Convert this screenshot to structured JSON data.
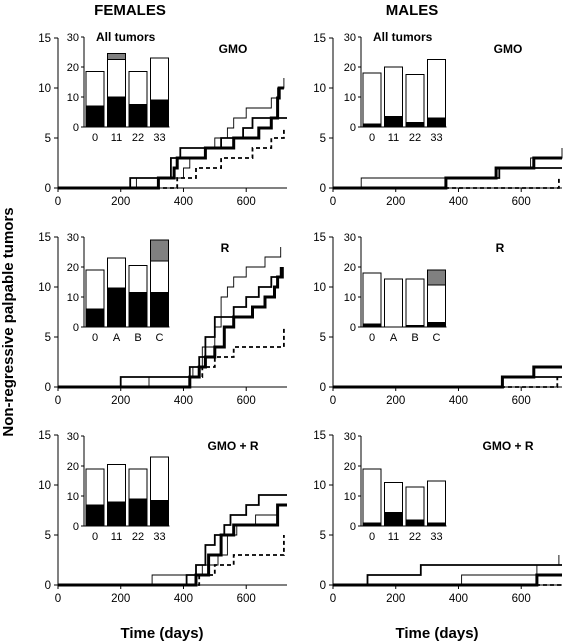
{
  "columns": [
    "FEMALES",
    "MALES"
  ],
  "ylabel": "Non-regressive palpable tumors",
  "xlabel": "Time (days)",
  "chart_data": [
    {
      "type": "line",
      "sex": "females",
      "group": "GMO",
      "label": "GMO",
      "inset_title": "All tumors",
      "xlim": [
        0,
        730
      ],
      "ylim": [
        0,
        15
      ],
      "xticks": [
        0,
        200,
        400,
        600
      ],
      "yticks": [
        0,
        5,
        10,
        15
      ],
      "series": [
        {
          "style": "thin",
          "steps": [
            [
              0,
              0
            ],
            [
              250,
              1
            ],
            [
              400,
              2
            ],
            [
              420,
              3
            ],
            [
              470,
              4
            ],
            [
              500,
              5
            ],
            [
              540,
              6
            ],
            [
              560,
              7
            ],
            [
              600,
              8
            ],
            [
              680,
              9
            ],
            [
              700,
              10
            ],
            [
              720,
              11
            ]
          ]
        },
        {
          "style": "medium",
          "steps": [
            [
              0,
              0
            ],
            [
              230,
              1
            ],
            [
              360,
              3
            ],
            [
              390,
              4
            ],
            [
              520,
              5
            ],
            [
              590,
              6
            ],
            [
              620,
              7
            ],
            [
              730,
              7
            ]
          ]
        },
        {
          "style": "thick",
          "steps": [
            [
              0,
              0
            ],
            [
              320,
              1
            ],
            [
              370,
              2
            ],
            [
              380,
              3
            ],
            [
              470,
              4
            ],
            [
              560,
              5
            ],
            [
              640,
              6
            ],
            [
              680,
              7
            ],
            [
              700,
              9
            ],
            [
              705,
              10
            ],
            [
              720,
              10
            ]
          ]
        },
        {
          "style": "dashed",
          "steps": [
            [
              0,
              0
            ],
            [
              380,
              1
            ],
            [
              440,
              2
            ],
            [
              520,
              3
            ],
            [
              620,
              4
            ],
            [
              680,
              5
            ],
            [
              720,
              6
            ]
          ]
        }
      ],
      "inset": {
        "categories": [
          "0",
          "11",
          "22",
          "33"
        ],
        "ylim": [
          0,
          30
        ],
        "yticks": [
          0,
          10,
          20,
          30
        ],
        "stacks": [
          {
            "black": 7,
            "white": 11.5,
            "grey": 0
          },
          {
            "black": 10,
            "white": 12.5,
            "grey": 2
          },
          {
            "black": 7.5,
            "white": 11,
            "grey": 0
          },
          {
            "black": 9,
            "white": 14,
            "grey": 0
          }
        ]
      }
    },
    {
      "type": "line",
      "sex": "males",
      "group": "GMO",
      "label": "GMO",
      "inset_title": "All tumors",
      "xlim": [
        0,
        730
      ],
      "ylim": [
        0,
        15
      ],
      "xticks": [
        0,
        200,
        400,
        600
      ],
      "yticks": [
        0,
        5,
        10,
        15
      ],
      "series": [
        {
          "style": "thin",
          "steps": [
            [
              0,
              0
            ],
            [
              90,
              1
            ],
            [
              530,
              2
            ],
            [
              630,
              3
            ],
            [
              730,
              4
            ]
          ]
        },
        {
          "style": "medium",
          "steps": [
            [
              0,
              0
            ],
            [
              360,
              1
            ],
            [
              530,
              2
            ],
            [
              730,
              2
            ]
          ]
        },
        {
          "style": "thick",
          "steps": [
            [
              0,
              0
            ],
            [
              360,
              1
            ],
            [
              520,
              2
            ],
            [
              640,
              3
            ],
            [
              730,
              3
            ]
          ]
        },
        {
          "style": "dashed",
          "steps": [
            [
              0,
              0
            ],
            [
              720,
              1
            ]
          ]
        }
      ],
      "inset": {
        "categories": [
          "0",
          "11",
          "22",
          "33"
        ],
        "ylim": [
          0,
          30
        ],
        "yticks": [
          0,
          10,
          20,
          30
        ],
        "stacks": [
          {
            "black": 1,
            "white": 17,
            "grey": 0
          },
          {
            "black": 3.5,
            "white": 16.5,
            "grey": 0
          },
          {
            "black": 1.5,
            "white": 16,
            "grey": 0
          },
          {
            "black": 3,
            "white": 19.5,
            "grey": 0
          }
        ]
      }
    },
    {
      "type": "line",
      "sex": "females",
      "group": "R",
      "label": "R",
      "xlim": [
        0,
        730
      ],
      "ylim": [
        0,
        15
      ],
      "xticks": [
        0,
        200,
        400,
        600
      ],
      "yticks": [
        0,
        5,
        10,
        15
      ],
      "series": [
        {
          "style": "thin",
          "steps": [
            [
              0,
              0
            ],
            [
              290,
              1
            ],
            [
              430,
              2
            ],
            [
              460,
              4
            ],
            [
              500,
              6
            ],
            [
              520,
              9
            ],
            [
              540,
              10
            ],
            [
              560,
              11
            ],
            [
              600,
              12
            ],
            [
              660,
              13
            ],
            [
              710,
              14
            ]
          ]
        },
        {
          "style": "medium",
          "steps": [
            [
              0,
              0
            ],
            [
              200,
              1
            ],
            [
              420,
              2
            ],
            [
              450,
              3
            ],
            [
              470,
              5
            ],
            [
              500,
              7
            ],
            [
              560,
              8
            ],
            [
              600,
              9
            ],
            [
              640,
              10
            ],
            [
              680,
              11
            ],
            [
              710,
              12
            ]
          ]
        },
        {
          "style": "thick",
          "steps": [
            [
              0,
              0
            ],
            [
              420,
              1
            ],
            [
              450,
              2
            ],
            [
              470,
              3
            ],
            [
              500,
              4
            ],
            [
              530,
              6
            ],
            [
              560,
              7
            ],
            [
              620,
              8
            ],
            [
              660,
              9
            ],
            [
              690,
              10
            ],
            [
              700,
              11
            ],
            [
              715,
              12
            ]
          ]
        },
        {
          "style": "dashed",
          "steps": [
            [
              0,
              0
            ],
            [
              420,
              1
            ],
            [
              460,
              2
            ],
            [
              500,
              3
            ],
            [
              560,
              4
            ],
            [
              720,
              6
            ]
          ]
        }
      ],
      "inset": {
        "categories": [
          "0",
          "A",
          "B",
          "C"
        ],
        "ylim": [
          0,
          30
        ],
        "yticks": [
          0,
          10,
          20,
          30
        ],
        "stacks": [
          {
            "black": 6,
            "white": 13,
            "grey": 0
          },
          {
            "black": 13,
            "white": 10,
            "grey": 0
          },
          {
            "black": 11.5,
            "white": 9,
            "grey": 0
          },
          {
            "black": 11.5,
            "white": 10.5,
            "grey": 7
          }
        ]
      }
    },
    {
      "type": "line",
      "sex": "males",
      "group": "R",
      "label": "R",
      "xlim": [
        0,
        730
      ],
      "ylim": [
        0,
        15
      ],
      "xticks": [
        0,
        200,
        400,
        600
      ],
      "yticks": [
        0,
        5,
        10,
        15
      ],
      "series": [
        {
          "style": "thin",
          "steps": [
            [
              0,
              0
            ],
            [
              730,
              0
            ]
          ]
        },
        {
          "style": "medium",
          "steps": [
            [
              0,
              0
            ],
            [
              540,
              1
            ],
            [
              730,
              1
            ]
          ]
        },
        {
          "style": "thick",
          "steps": [
            [
              0,
              0
            ],
            [
              540,
              1
            ],
            [
              640,
              2
            ],
            [
              730,
              2
            ]
          ]
        },
        {
          "style": "dashed",
          "steps": [
            [
              0,
              0
            ],
            [
              715,
              1
            ]
          ]
        }
      ],
      "inset": {
        "categories": [
          "0",
          "A",
          "B",
          "C"
        ],
        "ylim": [
          0,
          30
        ],
        "yticks": [
          0,
          10,
          20,
          30
        ],
        "stacks": [
          {
            "black": 1,
            "white": 17,
            "grey": 0
          },
          {
            "black": 0,
            "white": 16,
            "grey": 0
          },
          {
            "black": 0.5,
            "white": 15.5,
            "grey": 0
          },
          {
            "black": 1.5,
            "white": 12.5,
            "grey": 5
          }
        ]
      }
    },
    {
      "type": "line",
      "sex": "females",
      "group": "GMO + R",
      "label": "GMO + R",
      "xlim": [
        0,
        730
      ],
      "ylim": [
        0,
        15
      ],
      "xticks": [
        0,
        200,
        400,
        600
      ],
      "yticks": [
        0,
        5,
        10,
        15
      ],
      "series": [
        {
          "style": "thin",
          "steps": [
            [
              0,
              0
            ],
            [
              300,
              1
            ],
            [
              460,
              2
            ],
            [
              510,
              3
            ],
            [
              540,
              5
            ],
            [
              570,
              6
            ],
            [
              630,
              7
            ],
            [
              700,
              8
            ],
            [
              720,
              8
            ]
          ]
        },
        {
          "style": "medium",
          "steps": [
            [
              0,
              0
            ],
            [
              410,
              1
            ],
            [
              440,
              2
            ],
            [
              470,
              4
            ],
            [
              500,
              5
            ],
            [
              530,
              6
            ],
            [
              550,
              7
            ],
            [
              600,
              8
            ],
            [
              640,
              9
            ],
            [
              730,
              9
            ]
          ]
        },
        {
          "style": "thick",
          "steps": [
            [
              0,
              0
            ],
            [
              440,
              1
            ],
            [
              480,
              3
            ],
            [
              520,
              5
            ],
            [
              560,
              6
            ],
            [
              660,
              6
            ],
            [
              700,
              8
            ],
            [
              730,
              8
            ]
          ]
        },
        {
          "style": "dashed",
          "steps": [
            [
              0,
              0
            ],
            [
              450,
              1
            ],
            [
              500,
              2
            ],
            [
              560,
              3
            ],
            [
              720,
              5
            ]
          ]
        }
      ],
      "inset": {
        "categories": [
          "0",
          "11",
          "22",
          "33"
        ],
        "ylim": [
          0,
          30
        ],
        "yticks": [
          0,
          10,
          20,
          30
        ],
        "stacks": [
          {
            "black": 7,
            "white": 12,
            "grey": 0
          },
          {
            "black": 8,
            "white": 12.5,
            "grey": 0
          },
          {
            "black": 9,
            "white": 10,
            "grey": 0
          },
          {
            "black": 8.5,
            "white": 14.5,
            "grey": 0
          }
        ]
      }
    },
    {
      "type": "line",
      "sex": "males",
      "group": "GMO + R",
      "label": "GMO + R",
      "xlim": [
        0,
        730
      ],
      "ylim": [
        0,
        15
      ],
      "xticks": [
        0,
        200,
        400,
        600
      ],
      "yticks": [
        0,
        5,
        10,
        15
      ],
      "series": [
        {
          "style": "thin",
          "steps": [
            [
              0,
              0
            ],
            [
              410,
              1
            ],
            [
              650,
              2
            ],
            [
              720,
              3
            ]
          ]
        },
        {
          "style": "medium",
          "steps": [
            [
              0,
              0
            ],
            [
              110,
              1
            ],
            [
              280,
              2
            ],
            [
              730,
              2
            ]
          ]
        },
        {
          "style": "thick",
          "steps": [
            [
              0,
              0
            ],
            [
              650,
              1
            ],
            [
              730,
              1
            ]
          ]
        },
        {
          "style": "dashed",
          "steps": [
            [
              0,
              0
            ],
            [
              730,
              0
            ]
          ]
        }
      ],
      "inset": {
        "categories": [
          "0",
          "11",
          "22",
          "33"
        ],
        "ylim": [
          0,
          30
        ],
        "yticks": [
          0,
          10,
          20,
          30
        ],
        "stacks": [
          {
            "black": 1,
            "white": 18,
            "grey": 0
          },
          {
            "black": 4.5,
            "white": 10,
            "grey": 0
          },
          {
            "black": 2,
            "white": 11,
            "grey": 0
          },
          {
            "black": 1,
            "white": 14,
            "grey": 0
          }
        ]
      }
    }
  ]
}
